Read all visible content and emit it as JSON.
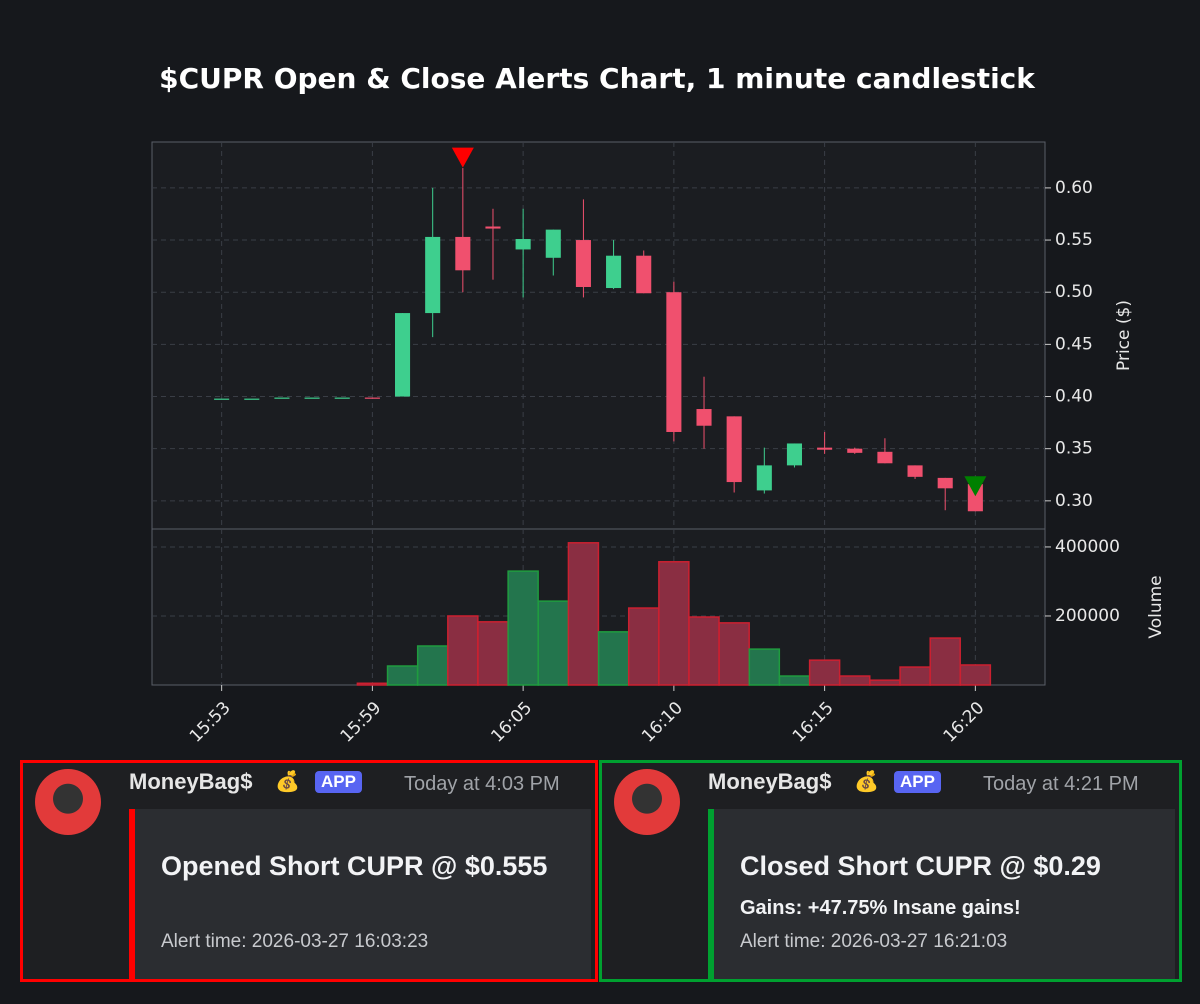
{
  "chart_data": {
    "type": "candlestick",
    "title": "$CUPR Open & Close Alerts Chart, 1 minute candlestick",
    "categories": [
      "15:53",
      null,
      null,
      null,
      null,
      "15:59",
      null,
      null,
      null,
      null,
      "16:05",
      null,
      null,
      null,
      null,
      "16:10",
      null,
      null,
      null,
      null,
      "16:15",
      null,
      null,
      null,
      null,
      "16:20"
    ],
    "open": [
      0.398,
      0.398,
      0.399,
      0.399,
      0.399,
      0.399,
      0.4,
      0.48,
      0.553,
      0.563,
      0.541,
      0.533,
      0.55,
      0.504,
      0.535,
      0.5,
      0.388,
      0.381,
      0.31,
      0.334,
      0.351,
      0.35,
      0.347,
      0.334,
      0.322,
      0.316
    ],
    "high": [
      0.398,
      0.398,
      0.399,
      0.399,
      0.399,
      0.399,
      0.48,
      0.6,
      0.619,
      0.58,
      0.58,
      0.56,
      0.589,
      0.55,
      0.54,
      0.51,
      0.419,
      0.381,
      0.351,
      0.355,
      0.366,
      0.351,
      0.36,
      0.334,
      0.322,
      0.316
    ],
    "low": [
      0.398,
      0.398,
      0.399,
      0.399,
      0.399,
      0.398,
      0.4,
      0.457,
      0.5,
      0.512,
      0.495,
      0.516,
      0.495,
      0.503,
      0.499,
      0.357,
      0.35,
      0.308,
      0.307,
      0.332,
      0.345,
      0.345,
      0.336,
      0.321,
      0.291,
      0.29
    ],
    "close": [
      0.398,
      0.398,
      0.399,
      0.399,
      0.399,
      0.398,
      0.48,
      0.553,
      0.521,
      0.561,
      0.551,
      0.56,
      0.505,
      0.535,
      0.499,
      0.366,
      0.372,
      0.318,
      0.334,
      0.355,
      0.349,
      0.346,
      0.336,
      0.323,
      0.312,
      0.29
    ],
    "volume": [
      0,
      0,
      0,
      0,
      0,
      5000,
      55000,
      113000,
      200000,
      183000,
      330000,
      243000,
      412000,
      154000,
      223000,
      357000,
      197000,
      180000,
      104000,
      26000,
      72000,
      26000,
      14000,
      52000,
      136000,
      58000
    ],
    "up_color": "#3ecf8e",
    "down_color": "#f0506e",
    "volume_up_color": "#23754d",
    "volume_up_edge": "#1f9c3f",
    "volume_down_color": "#8a2e42",
    "volume_down_edge": "#cc2030",
    "ylabel": "Price ($)",
    "volume_label": "Volume",
    "ylim": [
      0.273,
      0.644
    ],
    "yticks": [
      {
        "value": 0.3,
        "label": "0.30"
      },
      0.35,
      {
        "value": 0.4,
        "label": "0.40"
      },
      0.45,
      {
        "value": 0.5,
        "label": "0.50"
      },
      0.55,
      {
        "value": 0.6,
        "label": "0.60"
      }
    ],
    "volume_lim": [
      0,
      452000
    ],
    "volume_ticks": [
      200000,
      400000
    ],
    "grid": true,
    "markers": [
      {
        "x": 8,
        "y": 0.629,
        "color": "#ff0000"
      },
      {
        "x": 25,
        "y": 0.314,
        "color": "#008000"
      }
    ]
  },
  "messages": [
    {
      "author": "MoneyBag$",
      "emoji": "💰",
      "badge": "APP",
      "time": "Today at 4:03 PM",
      "title": "Opened Short CUPR @ $0.555",
      "detail": null,
      "footer": "Alert time: 2026-03-27 16:03:23",
      "color": "#ff0000"
    },
    {
      "author": "MoneyBag$",
      "emoji": "💰",
      "badge": "APP",
      "time": "Today at 4:21 PM",
      "title": "Closed Short CUPR @ $0.29",
      "detail": "Gains: +47.75% Insane gains!",
      "footer": "Alert time: 2026-03-27 16:21:03",
      "color": "#00a030"
    }
  ]
}
